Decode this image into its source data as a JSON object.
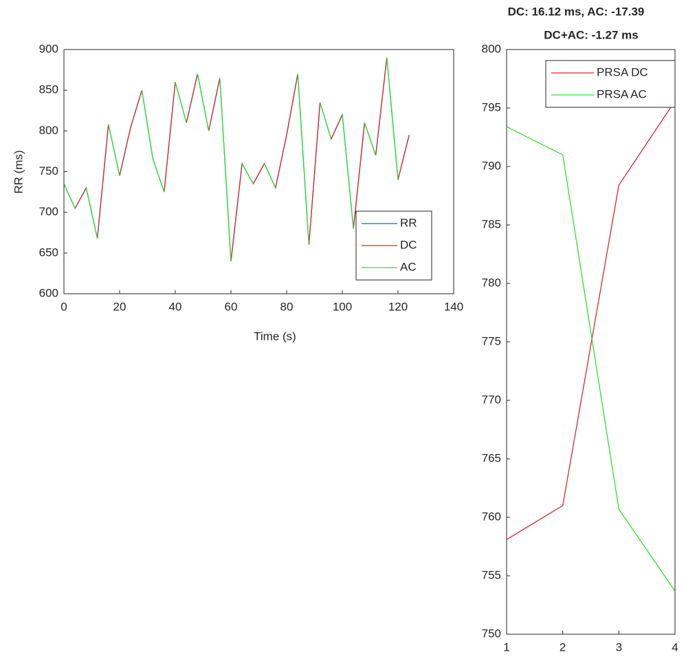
{
  "chart_data": [
    {
      "type": "line",
      "xlabel": "Time (s)",
      "ylabel": "RR (ms)",
      "xlim": [
        0,
        140
      ],
      "xticks": [
        0,
        20,
        40,
        60,
        80,
        100,
        120,
        140
      ],
      "ylim": [
        600,
        900
      ],
      "yticks": [
        600,
        650,
        700,
        750,
        800,
        850,
        900
      ],
      "legend": "southeast",
      "series": [
        {
          "name": "RR",
          "color": "#0072bd",
          "x": [
            0,
            4,
            8,
            12,
            16,
            20,
            24,
            28,
            32,
            36,
            40,
            44,
            48,
            52,
            56,
            60,
            64,
            68,
            72,
            76,
            80,
            84,
            88,
            92,
            96,
            100,
            104,
            108,
            112,
            116,
            120,
            124
          ],
          "values": [
            735,
            705,
            730,
            668,
            808,
            745,
            805,
            850,
            765,
            725,
            860,
            810,
            870,
            800,
            865,
            640,
            760,
            735,
            760,
            730,
            795,
            870,
            660,
            835,
            790,
            820,
            680,
            810,
            770,
            890,
            740,
            795
          ]
        },
        {
          "name": "DC",
          "color": "#d9272e",
          "x": [
            4,
            8,
            null,
            12,
            16,
            null,
            20,
            24,
            28,
            null,
            36,
            40,
            null,
            44,
            48,
            null,
            52,
            56,
            null,
            60,
            64,
            null,
            68,
            72,
            null,
            76,
            80,
            84,
            null,
            88,
            92,
            null,
            96,
            100,
            null,
            104,
            108,
            null,
            112,
            116,
            null,
            120,
            124
          ],
          "values": [
            705,
            730,
            null,
            668,
            808,
            null,
            745,
            805,
            850,
            null,
            725,
            860,
            null,
            810,
            870,
            null,
            800,
            865,
            null,
            640,
            760,
            null,
            735,
            760,
            null,
            730,
            795,
            870,
            null,
            660,
            835,
            null,
            790,
            820,
            null,
            680,
            810,
            null,
            770,
            890,
            null,
            740,
            795
          ]
        },
        {
          "name": "AC",
          "color": "#2ee02e",
          "x": [
            0,
            4,
            null,
            8,
            12,
            null,
            16,
            20,
            null,
            28,
            32,
            36,
            null,
            40,
            44,
            null,
            48,
            52,
            null,
            56,
            60,
            null,
            64,
            68,
            null,
            72,
            76,
            null,
            84,
            88,
            null,
            92,
            96,
            null,
            100,
            104,
            null,
            108,
            112,
            null,
            116,
            120
          ],
          "values": [
            735,
            705,
            null,
            730,
            668,
            null,
            808,
            745,
            null,
            850,
            765,
            725,
            null,
            860,
            810,
            null,
            870,
            800,
            null,
            865,
            640,
            null,
            760,
            735,
            null,
            760,
            730,
            null,
            870,
            660,
            null,
            835,
            790,
            null,
            820,
            680,
            null,
            810,
            770,
            null,
            890,
            740
          ]
        }
      ]
    },
    {
      "type": "line",
      "title": "DC: 16.12 ms, AC: -17.39",
      "subtitle": "DC+AC: -1.27 ms",
      "xlim": [
        1,
        4
      ],
      "xticks": [
        1,
        2,
        3,
        4
      ],
      "ylim": [
        750,
        800
      ],
      "yticks": [
        750,
        755,
        760,
        765,
        770,
        775,
        780,
        785,
        790,
        795,
        800
      ],
      "legend": "northeast",
      "series": [
        {
          "name": "PRSA DC",
          "color": "#d9272e",
          "x": [
            1,
            2,
            3,
            4
          ],
          "values": [
            758.1,
            761,
            788.4,
            795.6
          ]
        },
        {
          "name": "PRSA AC",
          "color": "#2ee02e",
          "x": [
            1,
            2,
            3,
            4
          ],
          "values": [
            793.4,
            791,
            760.7,
            753.7
          ]
        }
      ]
    }
  ]
}
